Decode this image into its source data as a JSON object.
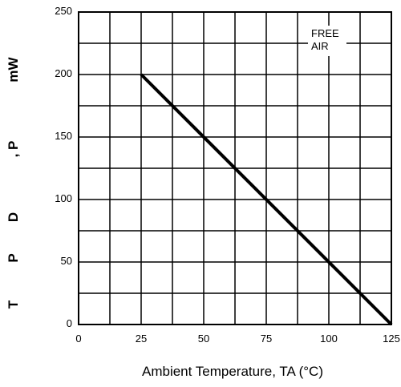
{
  "chart_data": {
    "type": "line",
    "title": "",
    "xlabel": "Ambient Temperature, TA (°C)",
    "ylabel_parts": [
      "T",
      "P",
      "D",
      ", P",
      "mW"
    ],
    "xlim": [
      0,
      125
    ],
    "ylim": [
      0,
      250
    ],
    "x_ticks": [
      0,
      25,
      50,
      75,
      100,
      125
    ],
    "y_ticks": [
      0,
      50,
      100,
      150,
      200,
      250
    ],
    "grid": true,
    "annotation": [
      "FREE",
      "AIR"
    ],
    "series": [
      {
        "x": [
          25,
          125
        ],
        "y": [
          200,
          0
        ]
      }
    ],
    "line_color": "#000000"
  }
}
